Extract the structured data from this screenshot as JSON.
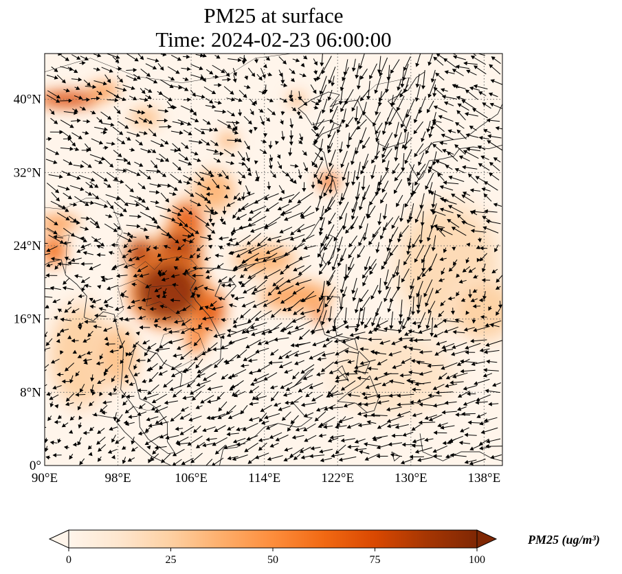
{
  "title": {
    "line1": "PM25 at surface",
    "line2": "Time: 2024-02-23 06:00:00"
  },
  "map": {
    "extent": {
      "lon": [
        90,
        140
      ],
      "lat": [
        0,
        45
      ]
    },
    "lon_ticks": [
      {
        "value": 90,
        "label": "90°E"
      },
      {
        "value": 98,
        "label": "98°E"
      },
      {
        "value": 106,
        "label": "106°E"
      },
      {
        "value": 114,
        "label": "114°E"
      },
      {
        "value": 122,
        "label": "122°E"
      },
      {
        "value": 130,
        "label": "130°E"
      },
      {
        "value": 138,
        "label": "138°E"
      }
    ],
    "lat_ticks": [
      {
        "value": 0,
        "label": "0°"
      },
      {
        "value": 8,
        "label": "8°N"
      },
      {
        "value": 16,
        "label": "16°N"
      },
      {
        "value": 24,
        "label": "24°N"
      },
      {
        "value": 32,
        "label": "32°N"
      },
      {
        "value": 40,
        "label": "40°N"
      }
    ],
    "gridlines": "dotted",
    "background_color": "#fff5eb",
    "field": "PM25",
    "pollution_hotspots": [
      {
        "lon": 103.5,
        "lat": 19.0,
        "value": 95,
        "rx": 3.5,
        "ry": 3.2
      },
      {
        "lon": 104.5,
        "lat": 22.5,
        "value": 85,
        "rx": 2.2,
        "ry": 3.0
      },
      {
        "lon": 105.5,
        "lat": 26.0,
        "value": 70,
        "rx": 1.6,
        "ry": 2.5
      },
      {
        "lon": 100.5,
        "lat": 23.0,
        "value": 85,
        "rx": 1.4,
        "ry": 1.6
      },
      {
        "lon": 108.0,
        "lat": 17.0,
        "value": 70,
        "rx": 1.5,
        "ry": 2.0
      },
      {
        "lon": 106.5,
        "lat": 14.0,
        "value": 55,
        "rx": 1.0,
        "ry": 1.6
      },
      {
        "lon": 92.5,
        "lat": 40.0,
        "value": 75,
        "rx": 3.0,
        "ry": 0.8
      },
      {
        "lon": 96.5,
        "lat": 41.0,
        "value": 45,
        "rx": 1.5,
        "ry": 0.8
      },
      {
        "lon": 91.0,
        "lat": 23.5,
        "value": 60,
        "rx": 1.2,
        "ry": 1.5
      },
      {
        "lon": 91.5,
        "lat": 26.5,
        "value": 45,
        "rx": 2.0,
        "ry": 0.8
      },
      {
        "lon": 121.0,
        "lat": 31.0,
        "value": 65,
        "rx": 1.0,
        "ry": 0.8
      },
      {
        "lon": 120.0,
        "lat": 16.5,
        "value": 60,
        "rx": 0.6,
        "ry": 1.0
      },
      {
        "lon": 117.5,
        "lat": 18.5,
        "value": 40,
        "rx": 3.5,
        "ry": 1.5
      },
      {
        "lon": 114.0,
        "lat": 22.5,
        "value": 35,
        "rx": 3.0,
        "ry": 1.5
      },
      {
        "lon": 108.5,
        "lat": 30.0,
        "value": 35,
        "rx": 2.0,
        "ry": 2.0
      },
      {
        "lon": 117.5,
        "lat": 40.0,
        "value": 40,
        "rx": 0.8,
        "ry": 0.6
      },
      {
        "lon": 101.0,
        "lat": 38.0,
        "value": 30,
        "rx": 1.5,
        "ry": 1.0
      },
      {
        "lon": 110.0,
        "lat": 35.5,
        "value": 35,
        "rx": 1.0,
        "ry": 0.8
      },
      {
        "lon": 98.0,
        "lat": 12.0,
        "value": 30,
        "rx": 2.0,
        "ry": 3.0
      },
      {
        "lon": 134.0,
        "lat": 22.0,
        "value": 20,
        "rx": 5.0,
        "ry": 6.0
      },
      {
        "lon": 138.0,
        "lat": 17.0,
        "value": 25,
        "rx": 3.0,
        "ry": 3.0
      },
      {
        "lon": 128.0,
        "lat": 10.0,
        "value": 15,
        "rx": 6.0,
        "ry": 4.0
      },
      {
        "lon": 94.0,
        "lat": 12.0,
        "value": 25,
        "rx": 3.0,
        "ry": 5.0
      }
    ],
    "wind": "10 m wind vectors (quiver)"
  },
  "colorbar": {
    "label": "PM25 (ug/m³)",
    "ticks": [
      {
        "value": 0,
        "label": "0"
      },
      {
        "value": 25,
        "label": "25"
      },
      {
        "value": 50,
        "label": "50"
      },
      {
        "value": 75,
        "label": "75"
      },
      {
        "value": 100,
        "label": "100"
      }
    ],
    "vmin": 0,
    "vmax": 100,
    "colormap": [
      "#fff5eb",
      "#fee6ce",
      "#fdd0a2",
      "#fdae6b",
      "#fd8d3c",
      "#f16913",
      "#d94801",
      "#a63603",
      "#7f2704"
    ],
    "extend": "both"
  }
}
